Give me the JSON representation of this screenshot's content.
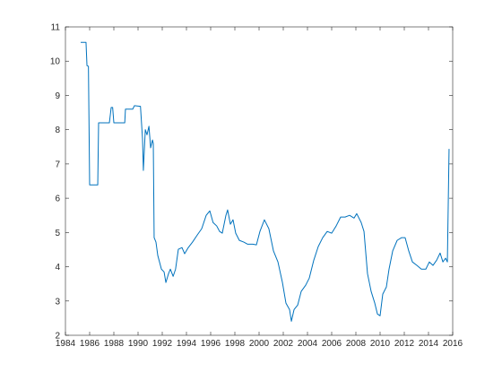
{
  "chart_data": {
    "type": "line",
    "x": [
      1985.26,
      1985.7,
      1985.78,
      1985.9,
      1986.0,
      1986.67,
      1986.74,
      1987.63,
      1987.78,
      1987.9,
      1988.0,
      1988.9,
      1988.96,
      1989.56,
      1989.7,
      1990.2,
      1990.37,
      1990.44,
      1990.6,
      1990.74,
      1990.9,
      1991.04,
      1991.19,
      1991.26,
      1991.33,
      1991.48,
      1991.63,
      1991.93,
      1992.15,
      1992.3,
      1992.52,
      1992.67,
      1992.9,
      1993.1,
      1993.33,
      1993.63,
      1993.85,
      1994.15,
      1994.5,
      1994.9,
      1995.26,
      1995.63,
      1995.93,
      1996.2,
      1996.5,
      1996.74,
      1996.96,
      1997.26,
      1997.4,
      1997.63,
      1997.85,
      1998.07,
      1998.37,
      1998.74,
      1999.04,
      1999.48,
      1999.78,
      2000.07,
      2000.44,
      2000.81,
      2001.19,
      2001.56,
      2001.93,
      2002.22,
      2002.52,
      2002.67,
      2002.89,
      2003.19,
      2003.48,
      2003.85,
      2004.15,
      2004.52,
      2004.89,
      2005.26,
      2005.63,
      2006.0,
      2006.37,
      2006.74,
      2007.11,
      2007.48,
      2007.85,
      2008.07,
      2008.44,
      2008.67,
      2008.96,
      2009.26,
      2009.56,
      2009.78,
      2010.0,
      2010.22,
      2010.52,
      2010.74,
      2011.04,
      2011.41,
      2011.78,
      2012.07,
      2012.37,
      2012.67,
      2013.04,
      2013.41,
      2013.78,
      2014.07,
      2014.37,
      2014.67,
      2014.96,
      2015.19,
      2015.41,
      2015.56,
      2015.7
    ],
    "series": [
      {
        "color": "#0072bd",
        "values": [
          10.55,
          10.55,
          9.87,
          9.85,
          6.39,
          6.39,
          8.2,
          8.2,
          8.65,
          8.65,
          8.2,
          8.2,
          8.6,
          8.6,
          8.7,
          8.68,
          7.73,
          6.81,
          8.0,
          7.85,
          8.1,
          7.47,
          7.7,
          7.6,
          4.85,
          4.72,
          4.33,
          3.93,
          3.85,
          3.54,
          3.8,
          3.93,
          3.72,
          3.93,
          4.51,
          4.56,
          4.38,
          4.56,
          4.72,
          4.93,
          5.11,
          5.5,
          5.63,
          5.29,
          5.19,
          5.03,
          4.98,
          5.5,
          5.66,
          5.24,
          5.37,
          4.98,
          4.77,
          4.72,
          4.66,
          4.66,
          4.64,
          5.03,
          5.37,
          5.11,
          4.46,
          4.14,
          3.54,
          2.94,
          2.75,
          2.41,
          2.75,
          2.88,
          3.28,
          3.46,
          3.67,
          4.19,
          4.59,
          4.85,
          5.03,
          4.98,
          5.19,
          5.45,
          5.45,
          5.5,
          5.42,
          5.55,
          5.29,
          5.03,
          3.8,
          3.28,
          2.94,
          2.62,
          2.57,
          3.2,
          3.41,
          3.93,
          4.46,
          4.77,
          4.85,
          4.85,
          4.46,
          4.14,
          4.04,
          3.93,
          3.93,
          4.14,
          4.04,
          4.19,
          4.4,
          4.14,
          4.25,
          4.14,
          7.44
        ]
      }
    ],
    "xlim": [
      1984,
      2016
    ],
    "xticks": [
      1984,
      1986,
      1988,
      1990,
      1992,
      1994,
      1996,
      1998,
      2000,
      2002,
      2004,
      2006,
      2008,
      2010,
      2012,
      2014,
      2016
    ],
    "ylim": [
      2,
      11
    ],
    "yticks": [
      2,
      3,
      4,
      5,
      6,
      7,
      8,
      9,
      10,
      11
    ],
    "grid": false
  }
}
